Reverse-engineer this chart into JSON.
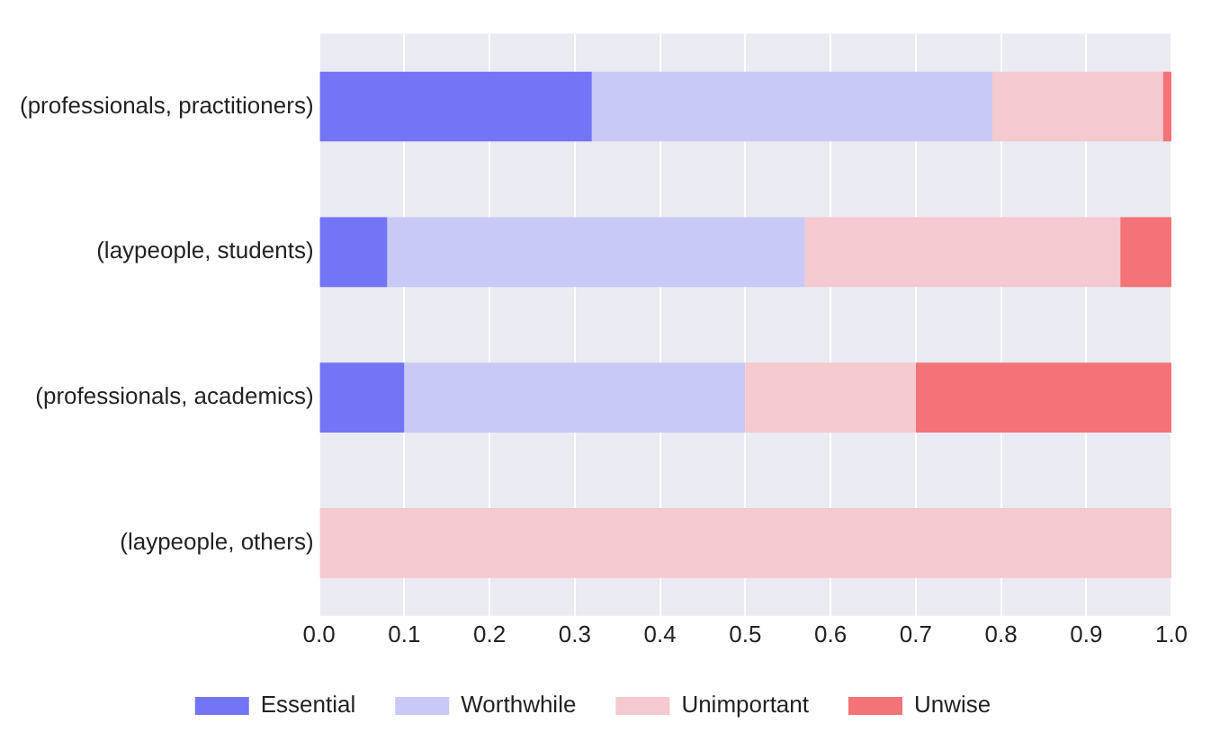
{
  "chart_data": {
    "type": "bar",
    "orientation": "horizontal",
    "stacked": true,
    "categories": [
      "(professionals, practitioners)",
      "(laypeople, students)",
      "(professionals, academics)",
      "(laypeople, others)"
    ],
    "series": [
      {
        "name": "Essential",
        "color": "#7474f6",
        "values": [
          0.32,
          0.08,
          0.1,
          0
        ]
      },
      {
        "name": "Worthwhile",
        "color": "#c9c9f6",
        "values": [
          0.47,
          0.49,
          0.4,
          0
        ]
      },
      {
        "name": "Unimportant",
        "color": "#f4c9cf",
        "values": [
          0.2,
          0.37,
          0.2,
          1
        ]
      },
      {
        "name": "Unwise",
        "color": "#f47378",
        "values": [
          0.01,
          0.06,
          0.3,
          0
        ]
      }
    ],
    "xlim": [
      0,
      1
    ],
    "xticks": [
      {
        "value": 0,
        "label": "0.0"
      },
      0.1,
      0.2,
      0.3,
      0.4,
      0.5,
      0.6,
      0.7,
      0.8,
      0.9,
      {
        "value": 1,
        "label": "1.0"
      }
    ],
    "grid": "x",
    "legend": "bottom"
  }
}
